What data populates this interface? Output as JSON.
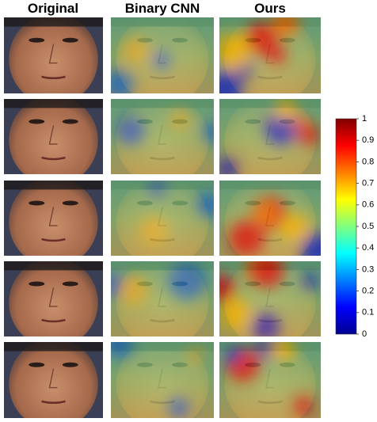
{
  "columns": [
    "Original",
    "Binary CNN",
    "Ours"
  ],
  "colorbar": {
    "ticks": [
      1,
      0.9,
      0.8,
      0.7,
      0.6,
      0.5,
      0.4,
      0.3,
      0.2,
      0.1,
      0
    ]
  }
}
